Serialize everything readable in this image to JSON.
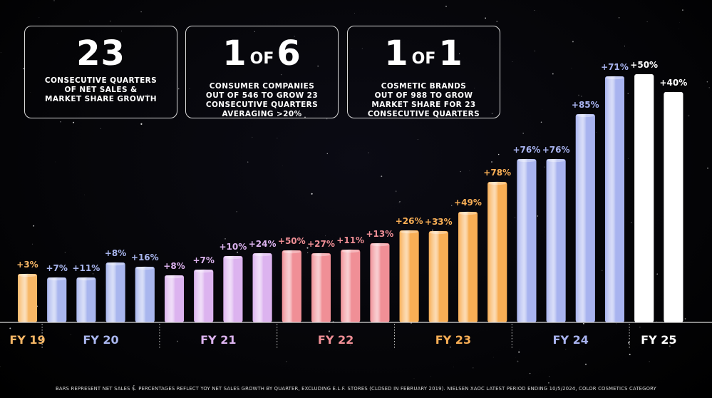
{
  "stats": [
    {
      "number": "23",
      "caption_lines": [
        "CONSECUTIVE QUARTERS",
        "OF NET SALES &",
        "MARKET SHARE GROWTH"
      ]
    },
    {
      "number_left": "1",
      "of": "OF",
      "number_right": "6",
      "caption_lines": [
        "CONSUMER COMPANIES",
        "OUT OF 546 TO GROW 23",
        "CONSECUTIVE QUARTERS",
        "AVERAGING >20%"
      ]
    },
    {
      "number_left": "1",
      "of": "OF",
      "number_right": "1",
      "caption_lines": [
        "COSMETIC BRANDS",
        "OUT OF 988 TO GROW",
        "MARKET SHARE FOR 23",
        "CONSECUTIVE QUARTERS"
      ]
    }
  ],
  "footnote": "BARS REPRESENT NET SALES $. PERCENTAGES REFLECT YOY NET SALES GROWTH BY QUARTER, EXCLUDING E.L.F. STORES (CLOSED IN FEBRUARY 2019). NIELSEN XAOC LATEST PERIOD ENDING 10/5/2024, COLOR COSMETICS CATEGORY",
  "colors": {
    "FY 19": "#f7b766",
    "FY 20": "#a9b6ee",
    "FY 21": "#dcb3ef",
    "FY 22": "#f08f96",
    "FY 23": "#f8ae55",
    "FY 24": "#a8b3ef",
    "FY 25": "#ffffff"
  },
  "chart_data": {
    "type": "bar",
    "title": "",
    "xlabel": "",
    "ylabel": "",
    "grid": false,
    "groups": [
      {
        "label": "FY 19",
        "labels": [
          "+3%"
        ],
        "values": [
          68
        ]
      },
      {
        "label": "FY 20",
        "labels": [
          "+7%",
          "+11%",
          "+8%",
          "+16%"
        ],
        "values": [
          63,
          63,
          84,
          78
        ]
      },
      {
        "label": "FY 21",
        "labels": [
          "+8%",
          "+7%",
          "+10%",
          "+24%"
        ],
        "values": [
          66,
          74,
          93,
          97
        ]
      },
      {
        "label": "FY 22",
        "labels": [
          "+50%",
          "+27%",
          "+11%",
          "+13%"
        ],
        "values": [
          101,
          97,
          102,
          111
        ]
      },
      {
        "label": "FY 23",
        "labels": [
          "+26%",
          "+33%",
          "+49%",
          "+78%"
        ],
        "values": [
          129,
          128,
          155,
          197
        ]
      },
      {
        "label": "FY 24",
        "labels": [
          "+76%",
          "+76%",
          "+85%",
          "+71%"
        ],
        "values": [
          229,
          229,
          292,
          345
        ]
      },
      {
        "label": "FY 25",
        "labels": [
          "+50%",
          "+40%"
        ],
        "values": [
          348,
          323
        ]
      }
    ]
  }
}
